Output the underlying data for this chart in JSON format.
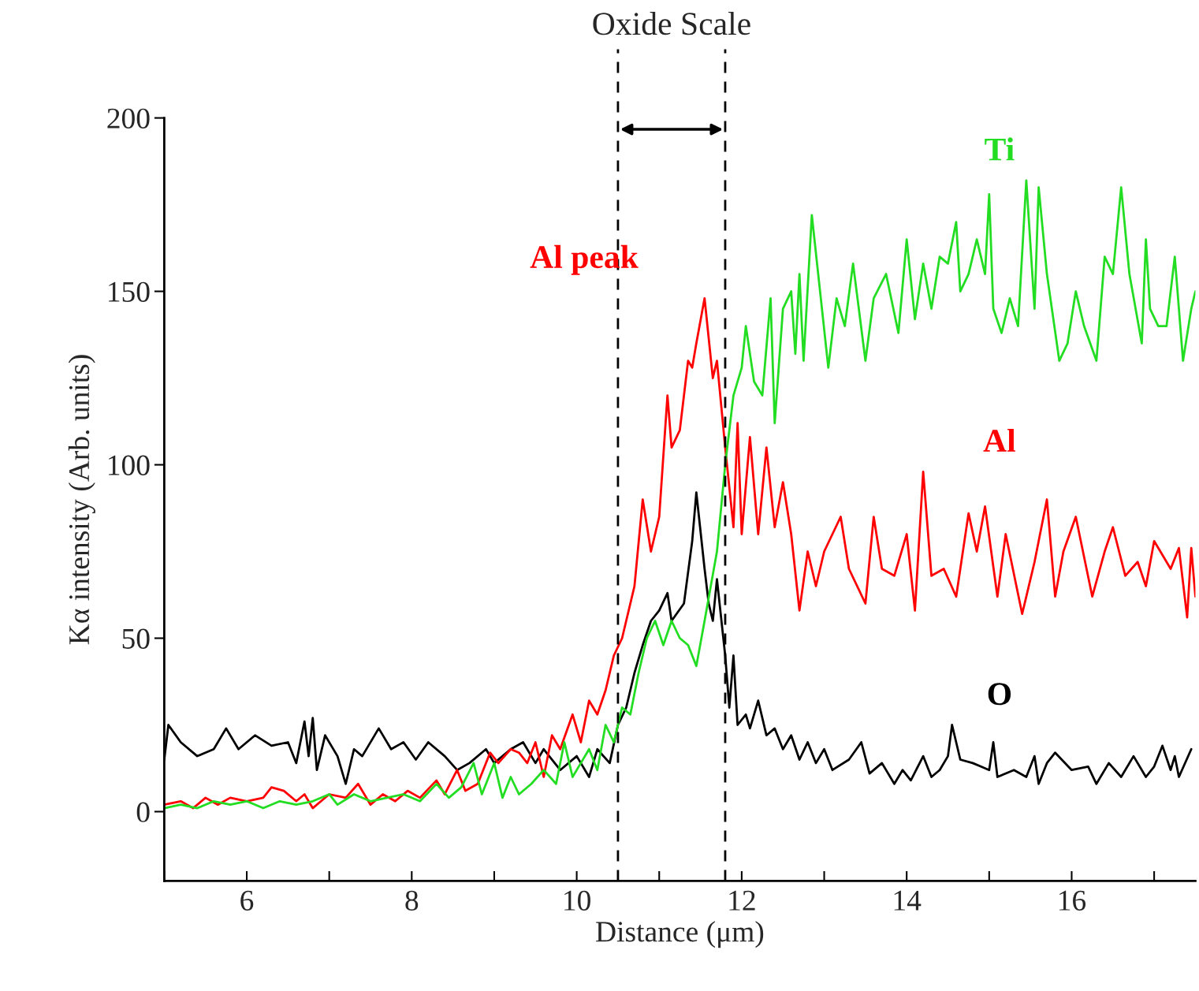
{
  "chart_data": {
    "type": "line",
    "xlabel": "Distance (μm)",
    "ylabel": "Kα intensity (Arb. units)",
    "xlim": [
      5,
      17.5
    ],
    "ylim": [
      -20,
      200
    ],
    "xticks": [
      6,
      8,
      10,
      12,
      14,
      16,
      {
        "value": 5,
        "label": null
      },
      {
        "value": 7,
        "label": null
      },
      {
        "value": 9,
        "label": null
      },
      {
        "value": 11,
        "label": null
      },
      {
        "value": 13,
        "label": null
      },
      {
        "value": 15,
        "label": null
      },
      {
        "value": 17,
        "label": null
      }
    ],
    "yticks": [
      0,
      50,
      100,
      150,
      200
    ],
    "grid": false,
    "marker": "none",
    "line_style": "solid",
    "ref_lines": [
      {
        "axis": "x",
        "value": 10.5,
        "color": "#000000",
        "line_style": "dashed"
      },
      {
        "axis": "x",
        "value": 11.8,
        "color": "#000000",
        "line_style": "dashed"
      }
    ],
    "annotations": [
      "Oxide Scale",
      {
        "text": "Al peak",
        "x": 11.55,
        "y": 148
      }
    ],
    "series": [
      {
        "name": "O",
        "color": "#000000",
        "x": [
          5.0,
          5.05,
          5.2,
          5.4,
          5.6,
          5.75,
          5.9,
          6.1,
          6.3,
          6.5,
          6.6,
          6.7,
          6.75,
          6.8,
          6.85,
          6.95,
          7.1,
          7.2,
          7.3,
          7.4,
          7.6,
          7.75,
          7.9,
          8.05,
          8.2,
          8.4,
          8.55,
          8.7,
          8.9,
          9.0,
          9.2,
          9.35,
          9.5,
          9.6,
          9.8,
          10.0,
          10.15,
          10.25,
          10.4,
          10.5,
          10.6,
          10.7,
          10.8,
          10.9,
          11.0,
          11.1,
          11.15,
          11.3,
          11.4,
          11.45,
          11.55,
          11.6,
          11.65,
          11.7,
          11.8,
          11.85,
          11.9,
          11.95,
          12.05,
          12.1,
          12.2,
          12.3,
          12.4,
          12.5,
          12.6,
          12.7,
          12.8,
          12.9,
          13.0,
          13.1,
          13.3,
          13.45,
          13.55,
          13.7,
          13.85,
          13.95,
          14.05,
          14.2,
          14.3,
          14.4,
          14.5,
          14.55,
          14.65,
          14.8,
          14.9,
          15.0,
          15.05,
          15.1,
          15.3,
          15.45,
          15.55,
          15.6,
          15.7,
          15.8,
          16.0,
          16.2,
          16.3,
          16.45,
          16.6,
          16.75,
          16.9,
          17.0,
          17.1,
          17.2,
          17.25,
          17.3,
          17.45
        ],
        "values": [
          15,
          25,
          20,
          16,
          18,
          24,
          18,
          22,
          19,
          20,
          14,
          26,
          16,
          27,
          12,
          22,
          16,
          8,
          18,
          16,
          24,
          18,
          20,
          15,
          20,
          16,
          12,
          14,
          18,
          14,
          18,
          20,
          14,
          18,
          12,
          16,
          10,
          18,
          14,
          25,
          30,
          40,
          48,
          55,
          58,
          63,
          55,
          60,
          78,
          92,
          70,
          60,
          55,
          67,
          45,
          30,
          45,
          25,
          28,
          24,
          32,
          22,
          24,
          18,
          22,
          15,
          20,
          14,
          18,
          12,
          15,
          20,
          11,
          14,
          8,
          12,
          9,
          16,
          10,
          12,
          16,
          25,
          15,
          14,
          13,
          12,
          20,
          10,
          12,
          10,
          16,
          8,
          14,
          17,
          12,
          13,
          8,
          14,
          10,
          16,
          10,
          13,
          19,
          12,
          16,
          10,
          18
        ]
      },
      {
        "name": "Al",
        "color": "#ff0000",
        "x": [
          5.0,
          5.2,
          5.35,
          5.5,
          5.65,
          5.8,
          6.0,
          6.2,
          6.3,
          6.45,
          6.6,
          6.7,
          6.8,
          6.9,
          7.0,
          7.2,
          7.35,
          7.5,
          7.65,
          7.8,
          7.95,
          8.1,
          8.3,
          8.4,
          8.55,
          8.65,
          8.8,
          8.95,
          9.05,
          9.2,
          9.3,
          9.4,
          9.5,
          9.6,
          9.7,
          9.8,
          9.95,
          10.05,
          10.15,
          10.25,
          10.35,
          10.45,
          10.55,
          10.7,
          10.8,
          10.9,
          11.0,
          11.1,
          11.15,
          11.25,
          11.35,
          11.4,
          11.45,
          11.55,
          11.65,
          11.7,
          11.8,
          11.9,
          11.95,
          12.0,
          12.1,
          12.2,
          12.3,
          12.4,
          12.5,
          12.6,
          12.7,
          12.8,
          12.9,
          13.0,
          13.2,
          13.3,
          13.5,
          13.6,
          13.7,
          13.85,
          14.0,
          14.1,
          14.2,
          14.3,
          14.45,
          14.6,
          14.75,
          14.85,
          14.95,
          15.1,
          15.2,
          15.4,
          15.55,
          15.7,
          15.8,
          15.9,
          16.05,
          16.25,
          16.4,
          16.5,
          16.65,
          16.8,
          16.9,
          17.0,
          17.2,
          17.3,
          17.4,
          17.45,
          17.5
        ],
        "values": [
          2,
          3,
          1,
          4,
          2,
          4,
          3,
          4,
          7,
          6,
          3,
          5,
          1,
          3,
          5,
          4,
          8,
          2,
          5,
          3,
          6,
          4,
          9,
          5,
          12,
          6,
          8,
          17,
          14,
          18,
          17,
          14,
          20,
          10,
          22,
          18,
          28,
          20,
          32,
          28,
          35,
          45,
          50,
          65,
          90,
          75,
          85,
          120,
          105,
          110,
          130,
          128,
          135,
          148,
          125,
          130,
          105,
          82,
          112,
          80,
          108,
          80,
          105,
          82,
          95,
          80,
          58,
          75,
          65,
          75,
          85,
          70,
          60,
          85,
          70,
          68,
          80,
          58,
          98,
          68,
          70,
          62,
          86,
          75,
          88,
          62,
          80,
          57,
          72,
          90,
          62,
          75,
          85,
          62,
          75,
          82,
          68,
          72,
          65,
          78,
          70,
          76,
          56,
          76,
          62
        ]
      },
      {
        "name": "Ti",
        "color": "#22dd22",
        "x": [
          5.0,
          5.2,
          5.4,
          5.6,
          5.8,
          6.0,
          6.2,
          6.4,
          6.6,
          6.8,
          7.0,
          7.1,
          7.3,
          7.5,
          7.7,
          7.9,
          8.1,
          8.3,
          8.45,
          8.6,
          8.75,
          8.85,
          9.0,
          9.1,
          9.2,
          9.3,
          9.45,
          9.6,
          9.75,
          9.85,
          9.95,
          10.05,
          10.15,
          10.25,
          10.35,
          10.45,
          10.55,
          10.65,
          10.75,
          10.85,
          10.95,
          11.05,
          11.15,
          11.25,
          11.35,
          11.45,
          11.55,
          11.7,
          11.8,
          11.9,
          12.0,
          12.05,
          12.15,
          12.25,
          12.35,
          12.4,
          12.5,
          12.6,
          12.65,
          12.7,
          12.75,
          12.85,
          12.95,
          13.05,
          13.15,
          13.25,
          13.35,
          13.5,
          13.6,
          13.75,
          13.9,
          14.0,
          14.1,
          14.2,
          14.3,
          14.4,
          14.5,
          14.6,
          14.65,
          14.75,
          14.85,
          14.95,
          15.0,
          15.05,
          15.15,
          15.25,
          15.35,
          15.45,
          15.55,
          15.6,
          15.7,
          15.85,
          15.95,
          16.05,
          16.15,
          16.3,
          16.4,
          16.5,
          16.6,
          16.7,
          16.85,
          16.9,
          16.95,
          17.05,
          17.15,
          17.25,
          17.35,
          17.45,
          17.5
        ],
        "values": [
          1,
          2,
          1,
          3,
          2,
          3,
          1,
          3,
          2,
          3,
          5,
          2,
          5,
          3,
          4,
          5,
          3,
          8,
          4,
          7,
          14,
          5,
          14,
          4,
          10,
          5,
          8,
          12,
          8,
          20,
          10,
          14,
          18,
          12,
          25,
          20,
          30,
          28,
          40,
          50,
          55,
          48,
          55,
          50,
          48,
          42,
          55,
          75,
          100,
          120,
          128,
          140,
          124,
          120,
          148,
          112,
          145,
          150,
          132,
          155,
          130,
          172,
          150,
          128,
          148,
          140,
          158,
          130,
          148,
          155,
          138,
          165,
          142,
          158,
          145,
          160,
          158,
          170,
          150,
          155,
          165,
          155,
          178,
          145,
          138,
          148,
          140,
          182,
          145,
          180,
          155,
          130,
          135,
          150,
          140,
          130,
          160,
          155,
          180,
          155,
          135,
          165,
          145,
          140,
          140,
          160,
          130,
          145,
          150
        ]
      }
    ]
  }
}
